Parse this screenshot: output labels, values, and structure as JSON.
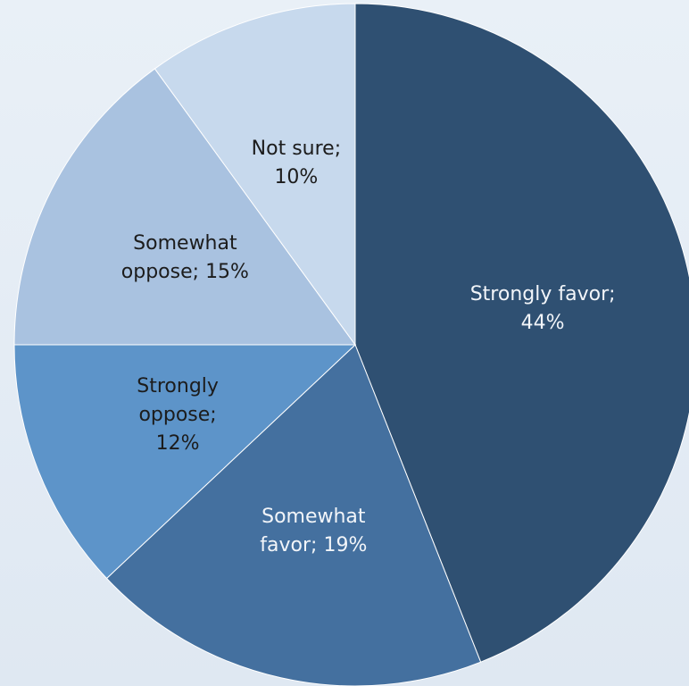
{
  "chart_data": {
    "type": "pie",
    "categories": [
      "Strongly favor;",
      "Somewhat favor;",
      "Strongly oppose;",
      "Somewhat oppose;",
      "Not sure;"
    ],
    "values": [
      44,
      19,
      12,
      15,
      10
    ],
    "value_labels": [
      "44%",
      "19%",
      "12%",
      "15%",
      "10%"
    ],
    "colors": [
      "#2f5072",
      "#44709f",
      "#5d94c9",
      "#a9c2e0",
      "#c7d9ed"
    ]
  }
}
